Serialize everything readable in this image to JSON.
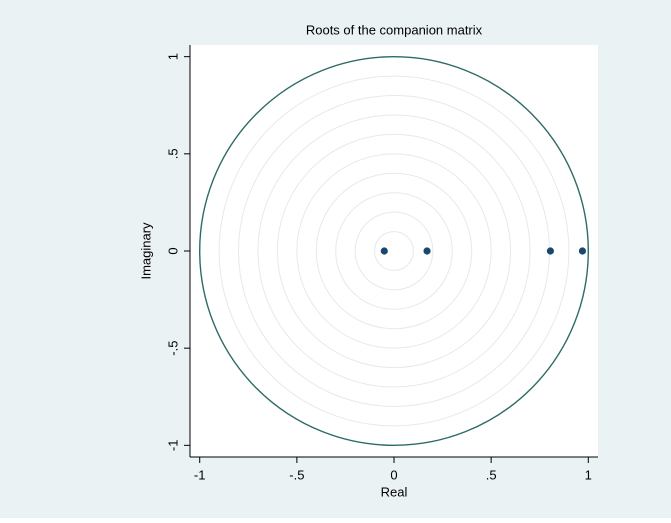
{
  "chart_data": {
    "type": "scatter",
    "title": "Roots of the companion matrix",
    "x_label": "Real",
    "y_label": "Imaginary",
    "x": [
      -0.05,
      0.17,
      0.805,
      0.97
    ],
    "values": [
      0,
      0,
      0,
      0
    ],
    "color": "#1a476f",
    "xlim": [
      -1.05,
      1.05
    ],
    "ylim": [
      -1.06,
      1.06
    ],
    "xticks": [
      -1,
      {
        "value": -0.5,
        "label": "-.5"
      },
      0,
      {
        "value": 0.5,
        "label": ".5"
      },
      1
    ],
    "yticks": [
      -1,
      {
        "value": -0.5,
        "label": "-.5"
      },
      0,
      {
        "value": 0.5,
        "label": ".5"
      },
      1
    ],
    "grid": true
  }
}
